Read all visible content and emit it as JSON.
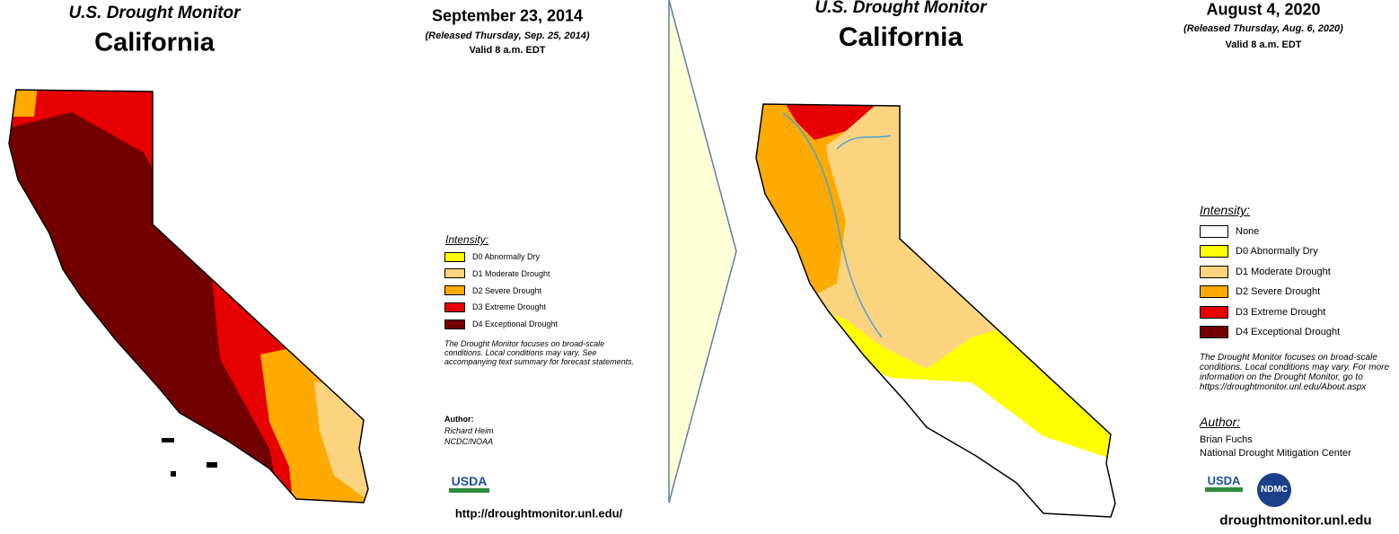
{
  "left": {
    "header": {
      "title": "U.S. Drought Monitor",
      "state": "California"
    },
    "date": "September 23, 2014",
    "released": "(Released Thursday, Sep. 25, 2014)",
    "valid": "Valid 8 a.m. EDT",
    "legend": {
      "title": "Intensity:",
      "items": [
        {
          "label": "D0 Abnormally Dry",
          "color": "#ffff00"
        },
        {
          "label": "D1 Moderate Drought",
          "color": "#fcd37f"
        },
        {
          "label": "D2 Severe Drought",
          "color": "#ffaa00"
        },
        {
          "label": "D3 Extreme Drought",
          "color": "#e60000"
        },
        {
          "label": "D4 Exceptional Drought",
          "color": "#730000"
        }
      ]
    },
    "note": "The Drought Monitor focuses on broad-scale conditions. Local conditions may vary. See accompanying text summary for forecast statements.",
    "author": {
      "label": "Author:",
      "lines": [
        "Richard Heim",
        "NCDC/NOAA"
      ]
    },
    "logos": [
      "USDA"
    ],
    "url": "http://droughtmonitor.unl.edu/"
  },
  "right": {
    "header": {
      "title": "U.S. Drought Monitor",
      "state": "California"
    },
    "date": "August 4, 2020",
    "released": "(Released Thursday, Aug. 6, 2020)",
    "valid": "Valid 8 a.m. EDT",
    "legend": {
      "title": "Intensity:",
      "items": [
        {
          "label": "None",
          "color": "#ffffff"
        },
        {
          "label": "D0 Abnormally Dry",
          "color": "#ffff00"
        },
        {
          "label": "D1 Moderate Drought",
          "color": "#fcd37f"
        },
        {
          "label": "D2 Severe Drought",
          "color": "#ffaa00"
        },
        {
          "label": "D3 Extreme Drought",
          "color": "#e60000"
        },
        {
          "label": "D4 Exceptional Drought",
          "color": "#730000"
        }
      ]
    },
    "note": "The Drought Monitor focuses on broad-scale conditions. Local conditions may vary. For more information on the Drought Monitor, go to https://droughtmonitor.unl.edu/About.aspx",
    "author": {
      "label": "Author:",
      "lines": [
        "Brian Fuchs",
        "National Drought Mitigation Center"
      ]
    },
    "logos": [
      "USDA",
      "NDMC"
    ],
    "url": "droughtmonitor.unl.edu"
  }
}
